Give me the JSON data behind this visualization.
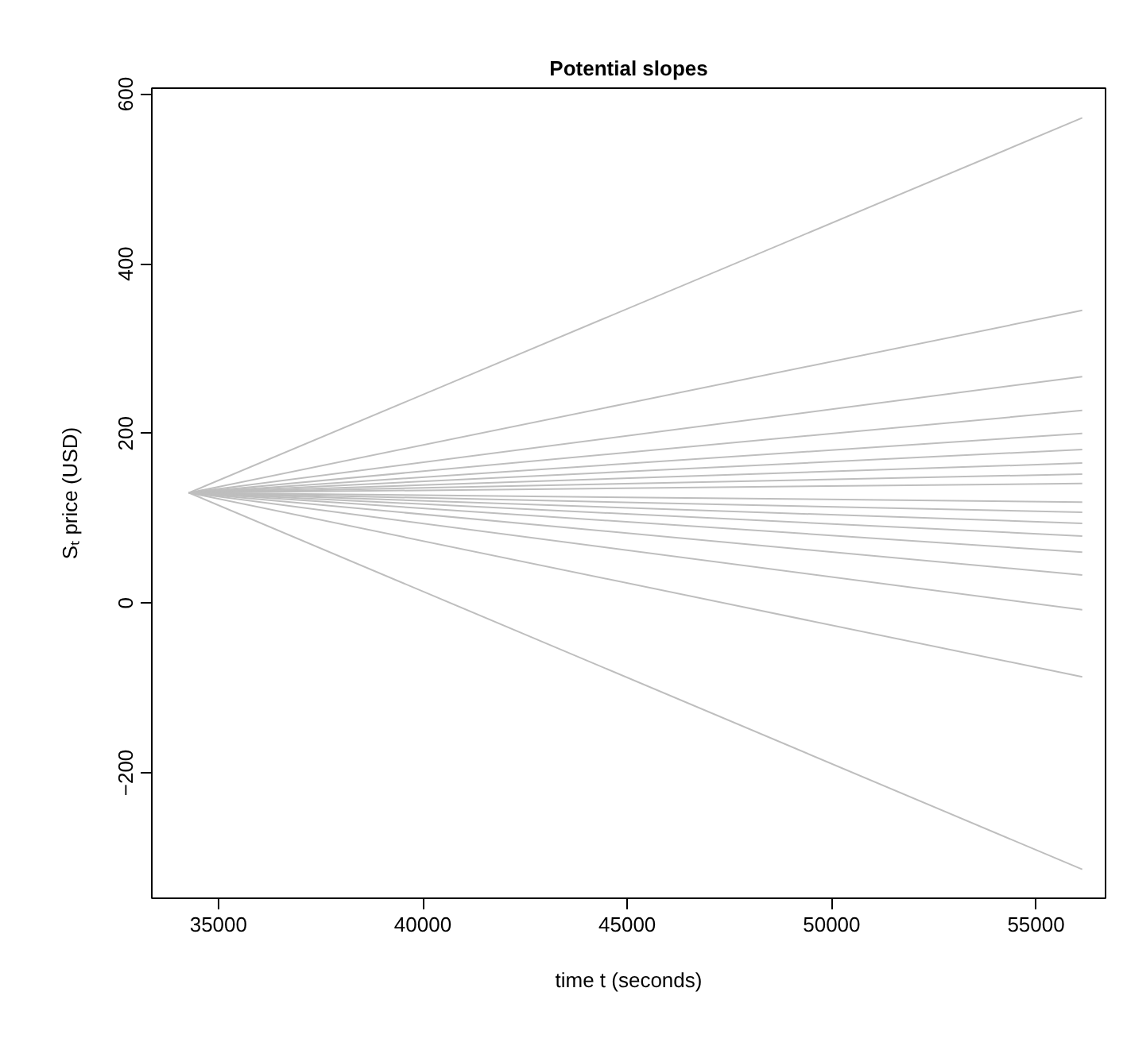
{
  "chart_data": {
    "type": "line",
    "title": "Potential slopes",
    "xlabel": "time t (seconds)",
    "ylabel": "Sₜ price (USD)",
    "x": [
      34280,
      56130
    ],
    "xlim": [
      33370,
      56700
    ],
    "ylim": [
      -348,
      607
    ],
    "xticks": [
      35000,
      40000,
      45000,
      50000,
      55000
    ],
    "yticks": [
      -200,
      0,
      200,
      400,
      600
    ],
    "grid": false,
    "series": [
      {
        "color": "#bebebe",
        "values": [
          130,
          572
        ]
      },
      {
        "color": "#bebebe",
        "values": [
          130,
          345
        ]
      },
      {
        "color": "#bebebe",
        "values": [
          130,
          267
        ]
      },
      {
        "color": "#bebebe",
        "values": [
          130,
          227
        ]
      },
      {
        "color": "#bebebe",
        "values": [
          130,
          200
        ]
      },
      {
        "color": "#bebebe",
        "values": [
          130,
          181
        ]
      },
      {
        "color": "#bebebe",
        "values": [
          130,
          165
        ]
      },
      {
        "color": "#bebebe",
        "values": [
          130,
          152
        ]
      },
      {
        "color": "#bebebe",
        "values": [
          130,
          141
        ]
      },
      {
        "color": "#bebebe",
        "values": [
          130,
          119
        ]
      },
      {
        "color": "#bebebe",
        "values": [
          130,
          107
        ]
      },
      {
        "color": "#bebebe",
        "values": [
          130,
          94
        ]
      },
      {
        "color": "#bebebe",
        "values": [
          130,
          79
        ]
      },
      {
        "color": "#bebebe",
        "values": [
          130,
          60
        ]
      },
      {
        "color": "#bebebe",
        "values": [
          130,
          33
        ]
      },
      {
        "color": "#bebebe",
        "values": [
          130,
          -8
        ]
      },
      {
        "color": "#bebebe",
        "values": [
          130,
          -87
        ]
      },
      {
        "color": "#bebebe",
        "values": [
          130,
          -314
        ]
      }
    ]
  }
}
